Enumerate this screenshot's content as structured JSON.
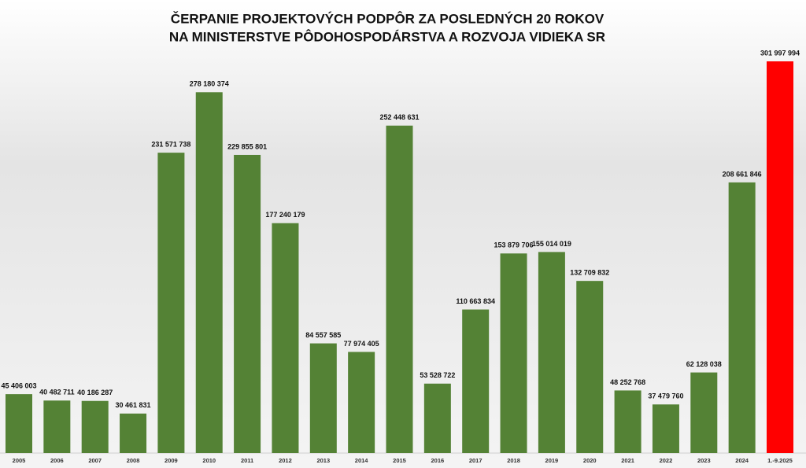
{
  "chart_data": {
    "type": "bar",
    "title": [
      "ČERPANIE PROJEKTOVÝCH PODPÔR ZA POSLEDNÝCH 20 ROKOV",
      "NA MINISTERSTVE PÔDOHOSPODÁRSTVA A ROZVOJA VIDIEKA SR"
    ],
    "categories": [
      "2005",
      "2006",
      "2007",
      "2008",
      "2009",
      "2010",
      "2011",
      "2012",
      "2013",
      "2014",
      "2015",
      "2016",
      "2017",
      "2018",
      "2019",
      "2020",
      "2021",
      "2022",
      "2023",
      "2024",
      "1.-9.2025"
    ],
    "values": [
      45406003,
      40482711,
      40186287,
      30461831,
      231571738,
      278180374,
      229855801,
      177240179,
      84557585,
      77974405,
      252448631,
      53528722,
      110663834,
      153879706,
      155014019,
      132709832,
      48252768,
      37479760,
      62128038,
      208661846,
      301997994
    ],
    "value_labels": [
      "45 406 003",
      "40 482 711",
      "40 186 287",
      "30 461 831",
      "231 571 738",
      "278 180 374",
      "229 855 801",
      "177 240 179",
      "84 557 585",
      "77 974 405",
      "252 448 631",
      "53 528 722",
      "110 663 834",
      "153 879 706",
      "155 014 019",
      "132 709 832",
      "48 252 768",
      "37 479 760",
      "62 128 038",
      "208 661 846",
      "301 997 994"
    ],
    "colors": [
      "#548235",
      "#548235",
      "#548235",
      "#548235",
      "#548235",
      "#548235",
      "#548235",
      "#548235",
      "#548235",
      "#548235",
      "#548235",
      "#548235",
      "#548235",
      "#548235",
      "#548235",
      "#548235",
      "#548235",
      "#548235",
      "#548235",
      "#548235",
      "#ff0000"
    ]
  }
}
